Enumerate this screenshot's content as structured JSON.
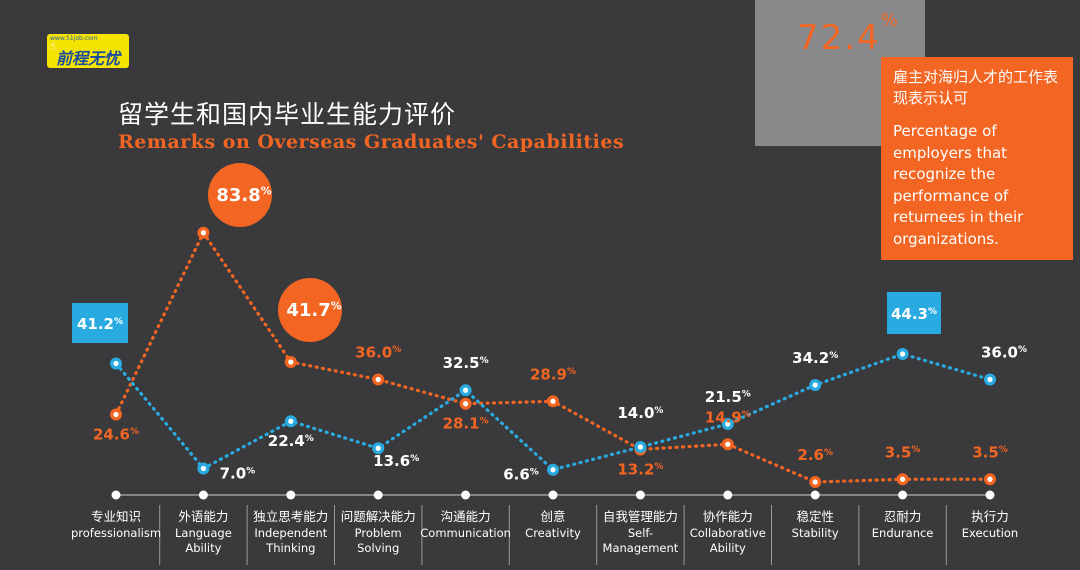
{
  "logo": {
    "text": "前程无忧",
    "url": "www.51job.com"
  },
  "title_cn": "留学生和国内毕业生能力评价",
  "title_en": "Remarks on Overseas Graduates' Capabilities",
  "callout": {
    "value": "72.4",
    "unit": "%",
    "text_cn": "雇主对海归人才的工作表现表示认可",
    "text_en": "Percentage of employers that recognize the performance of returnees in their organizations."
  },
  "colors": {
    "overseas": "#f26522",
    "domestic": "#29abe2",
    "background": "#3a3a3c",
    "text": "#ffffff"
  },
  "chart_data": {
    "type": "line",
    "categories": [
      {
        "cn": "专业知识",
        "en": "professionalism"
      },
      {
        "cn": "外语能力",
        "en": "Language Ability"
      },
      {
        "cn": "独立思考能力",
        "en": "Independent Thinking"
      },
      {
        "cn": "问题解决能力",
        "en": "Problem Solving"
      },
      {
        "cn": "沟通能力",
        "en": "Communication"
      },
      {
        "cn": "创意",
        "en": "Creativity"
      },
      {
        "cn": "自我管理能力",
        "en": "Self-Management"
      },
      {
        "cn": "协作能力",
        "en": "Collaborative Ability"
      },
      {
        "cn": "稳定性",
        "en": "Stability"
      },
      {
        "cn": "忍耐力",
        "en": "Endurance"
      },
      {
        "cn": "执行力",
        "en": "Execution"
      }
    ],
    "series": [
      {
        "color": "#f26522",
        "values": [
          24.6,
          83.8,
          41.7,
          36.0,
          28.1,
          28.9,
          13.2,
          14.9,
          2.6,
          3.5,
          3.5
        ],
        "highlighted": [
          1,
          2
        ]
      },
      {
        "color": "#29abe2",
        "values": [
          41.2,
          7.0,
          22.4,
          13.6,
          32.5,
          6.6,
          14.0,
          21.5,
          34.2,
          44.3,
          36.0
        ],
        "highlighted": [
          0,
          9
        ]
      }
    ],
    "unit": "%"
  }
}
